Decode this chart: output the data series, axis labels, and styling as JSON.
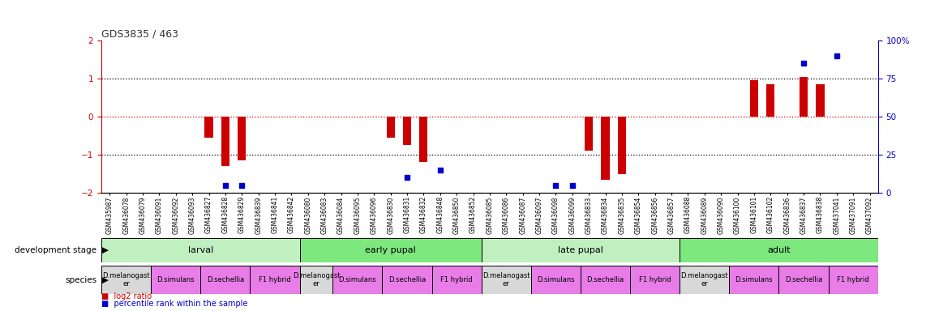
{
  "title": "GDS3835 / 463",
  "samples": [
    "GSM435987",
    "GSM436078",
    "GSM436079",
    "GSM436091",
    "GSM436092",
    "GSM436093",
    "GSM436827",
    "GSM436828",
    "GSM436829",
    "GSM436839",
    "GSM436841",
    "GSM436842",
    "GSM436080",
    "GSM436083",
    "GSM436084",
    "GSM436095",
    "GSM436096",
    "GSM436830",
    "GSM436831",
    "GSM436832",
    "GSM436848",
    "GSM436850",
    "GSM436852",
    "GSM436085",
    "GSM436086",
    "GSM436087",
    "GSM436097",
    "GSM436098",
    "GSM436099",
    "GSM436833",
    "GSM436834",
    "GSM436835",
    "GSM436854",
    "GSM436856",
    "GSM436857",
    "GSM436088",
    "GSM436089",
    "GSM436090",
    "GSM436100",
    "GSM436101",
    "GSM436102",
    "GSM436836",
    "GSM436837",
    "GSM436838",
    "GSM437041",
    "GSM437091",
    "GSM437092"
  ],
  "log2_ratio": [
    null,
    null,
    null,
    null,
    null,
    null,
    -0.55,
    -1.3,
    -1.15,
    null,
    null,
    null,
    null,
    null,
    null,
    null,
    null,
    -0.55,
    -0.75,
    -1.2,
    null,
    null,
    null,
    null,
    null,
    null,
    null,
    null,
    null,
    -0.9,
    -1.65,
    -1.5,
    null,
    null,
    null,
    null,
    null,
    null,
    null,
    0.95,
    0.85,
    null,
    1.05,
    0.85,
    null,
    null,
    null
  ],
  "percentile_raw": [
    null,
    null,
    null,
    null,
    null,
    null,
    null,
    5,
    5,
    null,
    null,
    null,
    null,
    null,
    null,
    null,
    null,
    null,
    10,
    null,
    15,
    null,
    null,
    null,
    null,
    null,
    null,
    5,
    5,
    null,
    null,
    null,
    null,
    null,
    null,
    null,
    null,
    null,
    null,
    null,
    null,
    null,
    85,
    null,
    90,
    null,
    null
  ],
  "dev_stages": [
    {
      "label": "larval",
      "start": 0,
      "end": 11,
      "color": "#c0efc0"
    },
    {
      "label": "early pupal",
      "start": 12,
      "end": 22,
      "color": "#7de87d"
    },
    {
      "label": "late pupal",
      "start": 23,
      "end": 34,
      "color": "#c0efc0"
    },
    {
      "label": "adult",
      "start": 35,
      "end": 46,
      "color": "#7de87d"
    }
  ],
  "species_groups": [
    {
      "label": "D.melanogast\ner",
      "start": 0,
      "end": 2,
      "color": "#d8d8d8"
    },
    {
      "label": "D.simulans",
      "start": 3,
      "end": 5,
      "color": "#e87de8"
    },
    {
      "label": "D.sechellia",
      "start": 6,
      "end": 8,
      "color": "#e87de8"
    },
    {
      "label": "F1 hybrid",
      "start": 9,
      "end": 11,
      "color": "#e87de8"
    },
    {
      "label": "D.melanogast\ner",
      "start": 12,
      "end": 13,
      "color": "#d8d8d8"
    },
    {
      "label": "D.simulans",
      "start": 14,
      "end": 16,
      "color": "#e87de8"
    },
    {
      "label": "D.sechellia",
      "start": 17,
      "end": 19,
      "color": "#e87de8"
    },
    {
      "label": "F1 hybrid",
      "start": 20,
      "end": 22,
      "color": "#e87de8"
    },
    {
      "label": "D.melanogast\ner",
      "start": 23,
      "end": 25,
      "color": "#d8d8d8"
    },
    {
      "label": "D.simulans",
      "start": 26,
      "end": 28,
      "color": "#e87de8"
    },
    {
      "label": "D.sechellia",
      "start": 29,
      "end": 31,
      "color": "#e87de8"
    },
    {
      "label": "F1 hybrid",
      "start": 32,
      "end": 34,
      "color": "#e87de8"
    },
    {
      "label": "D.melanogast\ner",
      "start": 35,
      "end": 37,
      "color": "#d8d8d8"
    },
    {
      "label": "D.simulans",
      "start": 38,
      "end": 40,
      "color": "#e87de8"
    },
    {
      "label": "D.sechellia",
      "start": 41,
      "end": 43,
      "color": "#e87de8"
    },
    {
      "label": "F1 hybrid",
      "start": 44,
      "end": 46,
      "color": "#e87de8"
    }
  ],
  "ylim_left": [
    -2,
    2
  ],
  "ylim_right": [
    0,
    100
  ],
  "bar_color": "#cc0000",
  "dot_color": "#0000cc",
  "hline0_color": "#cc0000",
  "hline1_color": "#000000",
  "title_color": "#333333",
  "left_axis_color": "#cc0000",
  "right_axis_color": "#0000cc",
  "yticks_left": [
    -2,
    -1,
    0,
    1,
    2
  ],
  "yticks_right": [
    0,
    25,
    50,
    75,
    100
  ],
  "ytick_right_labels": [
    "0",
    "25",
    "50",
    "75",
    "100%"
  ]
}
